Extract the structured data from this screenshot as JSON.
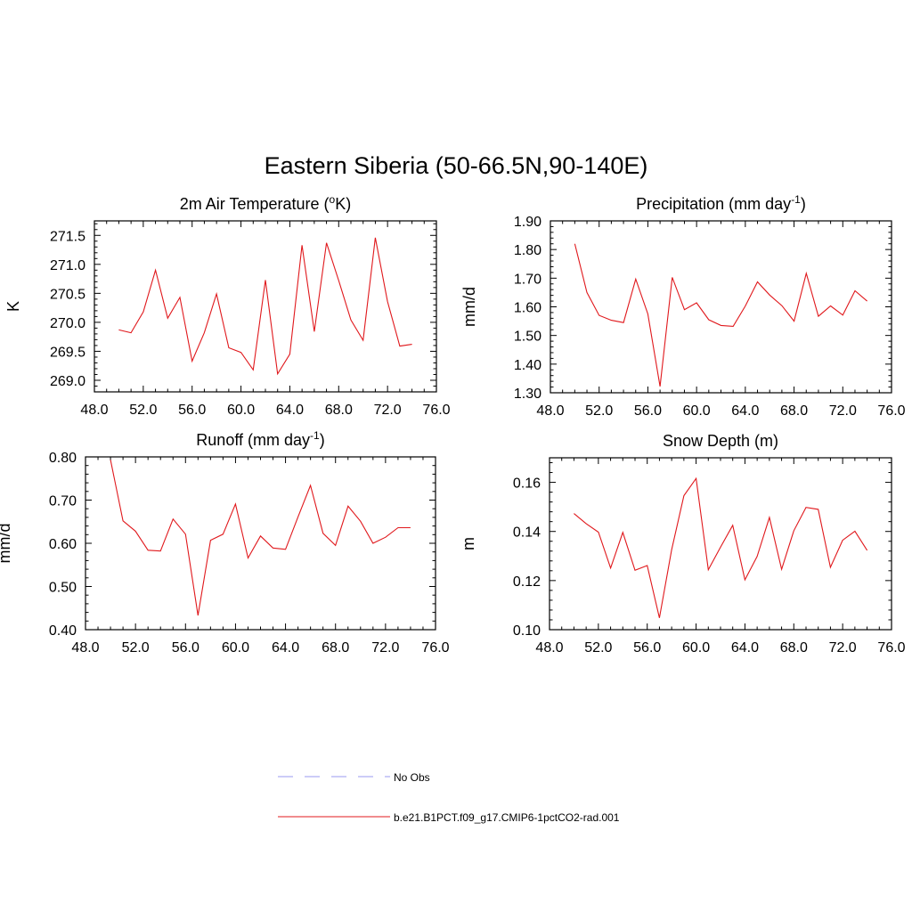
{
  "figure": {
    "title": "Eastern Siberia (50-66.5N,90-140E)"
  },
  "chart_data": [
    {
      "type": "line",
      "title": "2m Air Temperature (",
      "title_sup": "o",
      "title_end": "K)",
      "xlabel": "",
      "ylabel": "K",
      "xlim": [
        48,
        76
      ],
      "ylim": [
        268.8,
        271.75
      ],
      "xticks": [
        48,
        52,
        56,
        60,
        64,
        68,
        72,
        76
      ],
      "xtick_labels": [
        "48.0",
        "52.0",
        "56.0",
        "60.0",
        "64.0",
        "68.0",
        "72.0",
        "76.0"
      ],
      "yticks": [
        269.0,
        269.5,
        270.0,
        270.5,
        271.0,
        271.5
      ],
      "ytick_labels": [
        "269.0",
        "269.5",
        "270.0",
        "270.5",
        "271.0",
        "271.5"
      ],
      "series": [
        {
          "name": "b.e21.B1PCT.f09_g17.CMIP6-1pctCO2-rad.001",
          "color": "#e0181c",
          "x": [
            50,
            51,
            52,
            53,
            54,
            55,
            56,
            57,
            58,
            59,
            60,
            61,
            62,
            63,
            64,
            65,
            66,
            67,
            68,
            69,
            70,
            71,
            72,
            73,
            74
          ],
          "y": [
            269.87,
            269.82,
            270.18,
            270.9,
            270.07,
            270.43,
            269.33,
            269.82,
            270.49,
            269.56,
            269.48,
            269.18,
            270.73,
            269.11,
            269.45,
            271.33,
            269.84,
            271.37,
            270.72,
            270.04,
            269.69,
            271.46,
            270.36,
            269.59,
            269.62
          ]
        }
      ]
    },
    {
      "type": "line",
      "title": "Precipitation (mm day",
      "title_sup": "-1",
      "title_end": ")",
      "xlabel": "",
      "ylabel": "mm/d",
      "xlim": [
        48,
        76
      ],
      "ylim": [
        1.3,
        1.9
      ],
      "xticks": [
        48,
        52,
        56,
        60,
        64,
        68,
        72,
        76
      ],
      "xtick_labels": [
        "48.0",
        "52.0",
        "56.0",
        "60.0",
        "64.0",
        "68.0",
        "72.0",
        "76.0"
      ],
      "yticks": [
        1.3,
        1.4,
        1.5,
        1.6,
        1.7,
        1.8,
        1.9
      ],
      "ytick_labels": [
        "1.30",
        "1.40",
        "1.50",
        "1.60",
        "1.70",
        "1.80",
        "1.90"
      ],
      "series": [
        {
          "name": "b.e21.B1PCT.f09_g17.CMIP6-1pctCO2-rad.001",
          "color": "#e0181c",
          "x": [
            50,
            51,
            52,
            53,
            54,
            55,
            56,
            57,
            58,
            59,
            60,
            61,
            62,
            63,
            64,
            65,
            66,
            67,
            68,
            69,
            70,
            71,
            72,
            73,
            74
          ],
          "y": [
            1.82,
            1.65,
            1.57,
            1.553,
            1.545,
            1.697,
            1.575,
            1.322,
            1.703,
            1.59,
            1.614,
            1.555,
            1.535,
            1.532,
            1.603,
            1.687,
            1.641,
            1.604,
            1.55,
            1.717,
            1.567,
            1.603,
            1.571,
            1.656,
            1.62
          ]
        }
      ]
    },
    {
      "type": "line",
      "title": "Runoff (mm day",
      "title_sup": "-1",
      "title_end": ")",
      "xlabel": "",
      "ylabel": "mm/d",
      "xlim": [
        48,
        76
      ],
      "ylim": [
        0.4,
        0.8
      ],
      "xticks": [
        48,
        52,
        56,
        60,
        64,
        68,
        72,
        76
      ],
      "xtick_labels": [
        "48.0",
        "52.0",
        "56.0",
        "60.0",
        "64.0",
        "68.0",
        "72.0",
        "76.0"
      ],
      "yticks": [
        0.4,
        0.5,
        0.6,
        0.7,
        0.8
      ],
      "ytick_labels": [
        "0.40",
        "0.50",
        "0.60",
        "0.70",
        "0.80"
      ],
      "series": [
        {
          "name": "b.e21.B1PCT.f09_g17.CMIP6-1pctCO2-rad.001",
          "color": "#e0181c",
          "x": [
            50,
            51,
            52,
            53,
            54,
            55,
            56,
            57,
            58,
            59,
            60,
            61,
            62,
            63,
            64,
            65,
            66,
            67,
            68,
            69,
            70,
            71,
            72,
            73,
            74
          ],
          "y": [
            0.793,
            0.652,
            0.628,
            0.584,
            0.582,
            0.656,
            0.621,
            0.433,
            0.607,
            0.621,
            0.691,
            0.566,
            0.617,
            0.589,
            0.586,
            0.661,
            0.734,
            0.623,
            0.595,
            0.686,
            0.651,
            0.6,
            0.614,
            0.636,
            0.636
          ]
        }
      ]
    },
    {
      "type": "line",
      "title": "Snow Depth (m)",
      "title_sup": "",
      "title_end": "",
      "xlabel": "",
      "ylabel": "m",
      "xlim": [
        48,
        76
      ],
      "ylim": [
        0.1,
        0.17
      ],
      "xticks": [
        48,
        52,
        56,
        60,
        64,
        68,
        72,
        76
      ],
      "xtick_labels": [
        "48.0",
        "52.0",
        "56.0",
        "60.0",
        "64.0",
        "68.0",
        "72.0",
        "76.0"
      ],
      "yticks": [
        0.1,
        0.12,
        0.14,
        0.16
      ],
      "ytick_labels": [
        "0.10",
        "0.12",
        "0.14",
        "0.16"
      ],
      "series": [
        {
          "name": "b.e21.B1PCT.f09_g17.CMIP6-1pctCO2-rad.001",
          "color": "#e0181c",
          "x": [
            50,
            51,
            52,
            53,
            54,
            55,
            56,
            57,
            58,
            59,
            60,
            61,
            62,
            63,
            64,
            65,
            66,
            67,
            68,
            69,
            70,
            71,
            72,
            73,
            74
          ],
          "y": [
            0.1473,
            0.1432,
            0.1397,
            0.1251,
            0.1396,
            0.1242,
            0.1261,
            0.1048,
            0.1325,
            0.1546,
            0.1616,
            0.1244,
            0.1336,
            0.1425,
            0.1203,
            0.1298,
            0.1457,
            0.1246,
            0.1403,
            0.1498,
            0.149,
            0.1254,
            0.1364,
            0.1401,
            0.1323
          ]
        }
      ]
    }
  ],
  "legend": {
    "placement": "bottom",
    "entries": [
      {
        "label": "No Obs",
        "color": "#9a9af0",
        "dash": "dashed"
      },
      {
        "label": "b.e21.B1PCT.f09_g17.CMIP6-1pctCO2-rad.001",
        "color": "#e0181c",
        "dash": "solid"
      }
    ]
  }
}
